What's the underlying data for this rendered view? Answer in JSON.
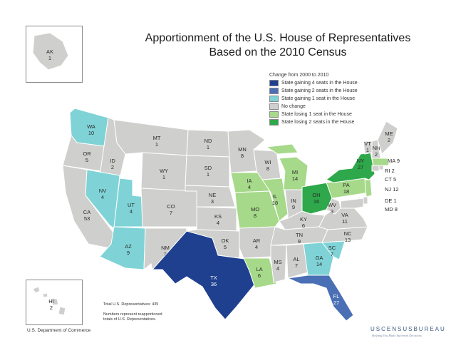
{
  "title_line1": "Apportionment of the U.S. House of Representatives",
  "title_line2": "Based on the 2010 Census",
  "legend": {
    "heading": "Change from 2000 to 2010",
    "items": [
      {
        "label": "State gaining 4 seats in the House",
        "color": "#1f3f8f"
      },
      {
        "label": "State gaining 2 seats in the House",
        "color": "#4a6fb5"
      },
      {
        "label": "State gaining 1 seat in the House",
        "color": "#7fd3d6"
      },
      {
        "label": "No change",
        "color": "#cfcfcd"
      },
      {
        "label": "State losing 1 seat in the House",
        "color": "#a6d98a"
      },
      {
        "label": "State losing 2 seats in the House",
        "color": "#2ea84a"
      }
    ]
  },
  "states": [
    {
      "abbr": "AK",
      "seats": "1",
      "cat": 3
    },
    {
      "abbr": "HI",
      "seats": "2",
      "cat": 3
    },
    {
      "abbr": "WA",
      "seats": "10",
      "cat": 2
    },
    {
      "abbr": "OR",
      "seats": "5",
      "cat": 3
    },
    {
      "abbr": "CA",
      "seats": "53",
      "cat": 3
    },
    {
      "abbr": "ID",
      "seats": "2",
      "cat": 3
    },
    {
      "abbr": "NV",
      "seats": "4",
      "cat": 2
    },
    {
      "abbr": "UT",
      "seats": "4",
      "cat": 2
    },
    {
      "abbr": "AZ",
      "seats": "9",
      "cat": 2
    },
    {
      "abbr": "MT",
      "seats": "1",
      "cat": 3
    },
    {
      "abbr": "WY",
      "seats": "1",
      "cat": 3
    },
    {
      "abbr": "CO",
      "seats": "7",
      "cat": 3
    },
    {
      "abbr": "NM",
      "seats": "3",
      "cat": 3
    },
    {
      "abbr": "ND",
      "seats": "1",
      "cat": 3
    },
    {
      "abbr": "SD",
      "seats": "1",
      "cat": 3
    },
    {
      "abbr": "NE",
      "seats": "3",
      "cat": 3
    },
    {
      "abbr": "KS",
      "seats": "4",
      "cat": 3
    },
    {
      "abbr": "OK",
      "seats": "5",
      "cat": 3
    },
    {
      "abbr": "TX",
      "seats": "36",
      "cat": 0
    },
    {
      "abbr": "MN",
      "seats": "8",
      "cat": 3
    },
    {
      "abbr": "IA",
      "seats": "4",
      "cat": 4
    },
    {
      "abbr": "MO",
      "seats": "8",
      "cat": 4
    },
    {
      "abbr": "AR",
      "seats": "4",
      "cat": 3
    },
    {
      "abbr": "LA",
      "seats": "6",
      "cat": 4
    },
    {
      "abbr": "WI",
      "seats": "8",
      "cat": 3
    },
    {
      "abbr": "IL",
      "seats": "18",
      "cat": 4
    },
    {
      "abbr": "MI",
      "seats": "14",
      "cat": 4
    },
    {
      "abbr": "IN",
      "seats": "9",
      "cat": 3
    },
    {
      "abbr": "OH",
      "seats": "16",
      "cat": 5
    },
    {
      "abbr": "KY",
      "seats": "6",
      "cat": 3
    },
    {
      "abbr": "TN",
      "seats": "9",
      "cat": 3
    },
    {
      "abbr": "MS",
      "seats": "4",
      "cat": 3
    },
    {
      "abbr": "AL",
      "seats": "7",
      "cat": 3
    },
    {
      "abbr": "GA",
      "seats": "14",
      "cat": 2
    },
    {
      "abbr": "FL",
      "seats": "27",
      "cat": 1
    },
    {
      "abbr": "SC",
      "seats": "7",
      "cat": 2
    },
    {
      "abbr": "NC",
      "seats": "13",
      "cat": 3
    },
    {
      "abbr": "VA",
      "seats": "11",
      "cat": 3
    },
    {
      "abbr": "WV",
      "seats": "3",
      "cat": 3
    },
    {
      "abbr": "PA",
      "seats": "18",
      "cat": 4
    },
    {
      "abbr": "NY",
      "seats": "27",
      "cat": 5
    },
    {
      "abbr": "VT",
      "seats": "1",
      "cat": 3
    },
    {
      "abbr": "NH",
      "seats": "2",
      "cat": 3
    },
    {
      "abbr": "ME",
      "seats": "2",
      "cat": 3
    },
    {
      "abbr": "MA",
      "seats": "9",
      "cat": 4
    },
    {
      "abbr": "RI",
      "seats": "2",
      "cat": 3
    },
    {
      "abbr": "CT",
      "seats": "5",
      "cat": 3
    },
    {
      "abbr": "NJ",
      "seats": "12",
      "cat": 4
    },
    {
      "abbr": "DE",
      "seats": "1",
      "cat": 3
    },
    {
      "abbr": "MD",
      "seats": "8",
      "cat": 3
    }
  ],
  "total_note": "Total U.S. Representatives: 435",
  "numbers_note_line1": "Numbers represent reapportioned",
  "numbers_note_line2": "totals of U.S. Representatives.",
  "department": "U.S. Department of Commerce",
  "bureau_logo": "USCENSUSBUREAU",
  "bureau_tagline": "Helping You Make Informed Decisions"
}
